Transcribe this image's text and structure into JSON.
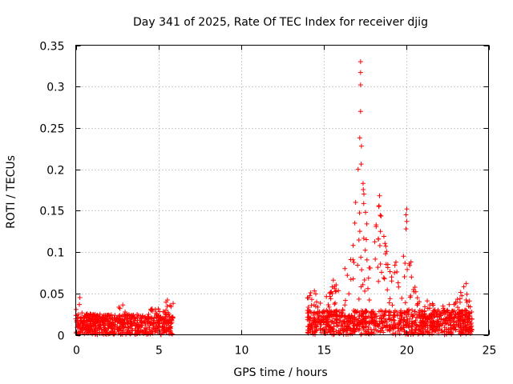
{
  "chart_data": {
    "type": "scatter",
    "title": "Day 341 of 2025, Rate Of TEC Index for receiver djig",
    "xlabel": "GPS time / hours",
    "ylabel": "ROTI / TECUs",
    "xlim": [
      0,
      25
    ],
    "ylim": [
      0,
      0.35
    ],
    "x_ticks": [
      0,
      5,
      10,
      15,
      20,
      25
    ],
    "x_tick_labels": [
      "0",
      "5",
      "10",
      "15",
      "20",
      "25"
    ],
    "y_ticks": [
      0,
      0.05,
      0.1,
      0.15,
      0.2,
      0.25,
      0.3,
      0.35
    ],
    "y_tick_labels": [
      "0",
      "0.05",
      "0.1",
      "0.15",
      "0.2",
      "0.25",
      "0.3",
      "0.35"
    ],
    "grid": true,
    "marker": "+",
    "series": [
      {
        "name": "ROTI",
        "color": "#ff0000",
        "segments": [
          {
            "x_range": [
              0.0,
              5.9
            ],
            "baseline": [
              0.0,
              0.025
            ],
            "envelope": [
              [
                0.1,
                0.032
              ],
              [
                0.25,
                0.045
              ],
              [
                0.5,
                0.028
              ],
              [
                1.0,
                0.025
              ],
              [
                1.5,
                0.027
              ],
              [
                2.0,
                0.026
              ],
              [
                2.8,
                0.036
              ],
              [
                3.5,
                0.026
              ],
              [
                4.2,
                0.028
              ],
              [
                5.0,
                0.035
              ],
              [
                5.5,
                0.042
              ],
              [
                5.85,
                0.038
              ]
            ]
          },
          {
            "x_range": [
              14.0,
              24.0
            ],
            "baseline": [
              0.0,
              0.03
            ],
            "envelope": [
              [
                14.0,
                0.045
              ],
              [
                14.4,
                0.055
              ],
              [
                15.0,
                0.045
              ],
              [
                15.7,
                0.065
              ],
              [
                16.0,
                0.05
              ],
              [
                16.5,
                0.075
              ],
              [
                17.0,
                0.13
              ],
              [
                17.3,
                0.22
              ],
              [
                17.8,
                0.1
              ],
              [
                18.4,
                0.165
              ],
              [
                19.0,
                0.08
              ],
              [
                19.8,
                0.1
              ],
              [
                20.0,
                0.15
              ],
              [
                20.5,
                0.06
              ],
              [
                21.0,
                0.045
              ],
              [
                22.0,
                0.035
              ],
              [
                23.0,
                0.04
              ],
              [
                23.5,
                0.06
              ],
              [
                24.0,
                0.04
              ]
            ]
          }
        ],
        "peaks": [
          {
            "x": 17.25,
            "y": 0.33
          },
          {
            "x": 17.25,
            "y": 0.317
          },
          {
            "x": 17.25,
            "y": 0.302
          },
          {
            "x": 17.25,
            "y": 0.27
          },
          {
            "x": 17.2,
            "y": 0.238
          },
          {
            "x": 17.3,
            "y": 0.228
          },
          {
            "x": 17.1,
            "y": 0.2
          },
          {
            "x": 17.4,
            "y": 0.183
          },
          {
            "x": 17.45,
            "y": 0.17
          },
          {
            "x": 18.4,
            "y": 0.168
          },
          {
            "x": 18.35,
            "y": 0.155
          },
          {
            "x": 16.95,
            "y": 0.16
          },
          {
            "x": 20.05,
            "y": 0.152
          },
          {
            "x": 20.0,
            "y": 0.145
          },
          {
            "x": 20.05,
            "y": 0.137
          },
          {
            "x": 20.0,
            "y": 0.128
          },
          {
            "x": 17.55,
            "y": 0.148
          },
          {
            "x": 16.9,
            "y": 0.135
          },
          {
            "x": 18.45,
            "y": 0.125
          },
          {
            "x": 17.6,
            "y": 0.115
          },
          {
            "x": 16.8,
            "y": 0.108
          },
          {
            "x": 19.85,
            "y": 0.095
          },
          {
            "x": 20.3,
            "y": 0.088
          },
          {
            "x": 18.9,
            "y": 0.085
          },
          {
            "x": 16.3,
            "y": 0.08
          },
          {
            "x": 19.3,
            "y": 0.075
          },
          {
            "x": 15.6,
            "y": 0.066
          },
          {
            "x": 23.65,
            "y": 0.062
          },
          {
            "x": 23.5,
            "y": 0.058
          },
          {
            "x": 14.45,
            "y": 0.053
          },
          {
            "x": 0.25,
            "y": 0.045
          },
          {
            "x": 5.55,
            "y": 0.042
          },
          {
            "x": 5.9,
            "y": 0.038
          },
          {
            "x": 2.85,
            "y": 0.036
          },
          {
            "x": 23.0,
            "y": 0.038
          }
        ]
      }
    ]
  }
}
